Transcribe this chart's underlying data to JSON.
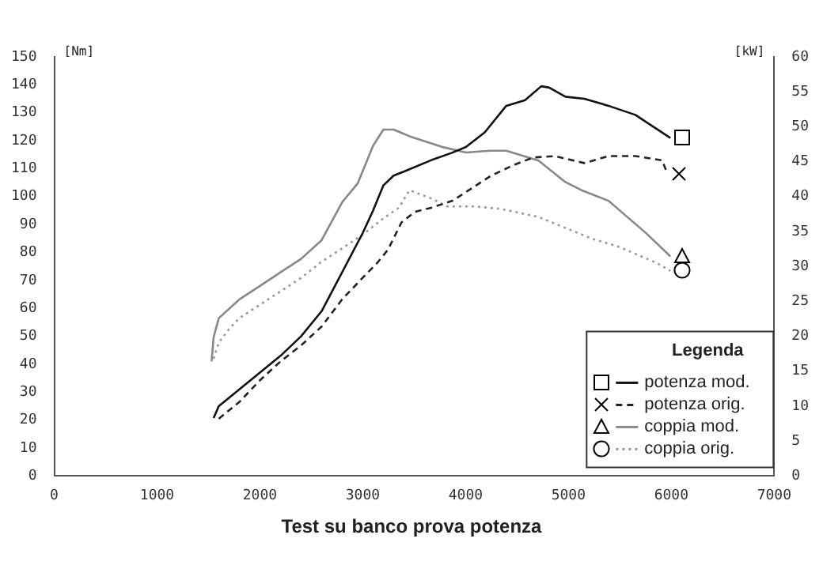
{
  "chart_data": {
    "type": "line",
    "ylabel": "[Nm]",
    "y2label": "[kW]",
    "legend_title": "Legenda",
    "legend": "bottom right",
    "grid": false,
    "xlim": [
      0,
      7000
    ],
    "xticks": [
      0,
      1000,
      2000,
      3000,
      4000,
      5000,
      6000,
      7000
    ],
    "ylim": [
      0,
      150
    ],
    "yticks": [
      0,
      10,
      20,
      30,
      40,
      50,
      60,
      70,
      80,
      90,
      100,
      110,
      120,
      130,
      140,
      150
    ],
    "y2lim": [
      0,
      60
    ],
    "y2ticks": [
      0,
      5,
      10,
      15,
      20,
      25,
      30,
      35,
      40,
      45,
      50,
      55,
      60
    ],
    "annotations": [
      "Test su banco prova potenza"
    ],
    "series": [
      {
        "name": "potenza mod.",
        "color": "#111111",
        "axis": "y2",
        "line_style": "solid",
        "x": [
          1550,
          1600,
          1800,
          2000,
          2200,
          2400,
          2600,
          2800,
          3000,
          3100,
          3200,
          3300,
          3402,
          3663,
          3872,
          4003,
          4186,
          4395,
          4578,
          4735,
          4813,
          4970,
          5154,
          5389,
          5650,
          5991
        ],
        "values": [
          8.3,
          10,
          12.4,
          14.8,
          17.2,
          20,
          23.6,
          29.2,
          34.8,
          38,
          41.6,
          43,
          43.6,
          45.2,
          46.3,
          47.1,
          49.2,
          53,
          53.8,
          55.8,
          55.6,
          54.3,
          54,
          53,
          51.7,
          48.4
        ]
      },
      {
        "name": "potenza orig.",
        "color": "#222222",
        "axis": "y2",
        "line_style": "dashed",
        "x": [
          1600,
          1800,
          2000,
          2200,
          2400,
          2600,
          2800,
          3000,
          3140,
          3245,
          3376,
          3506,
          3663,
          3872,
          4029,
          4238,
          4447,
          4656,
          4866,
          5154,
          5389,
          5650,
          5911,
          5963
        ],
        "values": [
          8.2,
          10.6,
          13.7,
          16.4,
          18.7,
          21.4,
          25.3,
          28.4,
          30.5,
          32.4,
          36.3,
          37.8,
          38.4,
          39.4,
          40.9,
          42.9,
          44.4,
          45.6,
          45.8,
          44.8,
          45.8,
          45.8,
          45.2,
          43.2
        ]
      },
      {
        "name": "coppia mod.",
        "color": "#888888",
        "axis": "y",
        "line_style": "solid",
        "x": [
          1530,
          1550,
          1600,
          1800,
          2000,
          2200,
          2400,
          2600,
          2800,
          2950,
          3100,
          3200,
          3300,
          3454,
          3768,
          4003,
          4238,
          4395,
          4709,
          4970,
          5127,
          5389,
          5755,
          5991
        ],
        "values": [
          41,
          49.7,
          56.5,
          63.2,
          68,
          72.9,
          77.7,
          84.4,
          98,
          104.7,
          118.2,
          124,
          124,
          121.6,
          117.8,
          115.8,
          116.4,
          116.4,
          112.9,
          105.2,
          102.3,
          98.5,
          86.9,
          78.6
        ]
      },
      {
        "name": "coppia orig.",
        "color": "#9a9a9a",
        "axis": "y",
        "line_style": "dotted",
        "x": [
          1550,
          1600,
          1700,
          1800,
          2000,
          2200,
          2400,
          2600,
          2800,
          3000,
          3200,
          3350,
          3454,
          3663,
          3820,
          4082,
          4343,
          4709,
          4970,
          5232,
          5494,
          5860,
          5991
        ],
        "values": [
          42,
          47.8,
          52.6,
          56.5,
          61.3,
          66.1,
          70.9,
          76.7,
          81.5,
          86.4,
          92.2,
          96,
          102.3,
          99.4,
          96.5,
          96.5,
          95.6,
          92.7,
          88.8,
          84.9,
          82,
          76.2,
          73.4
        ]
      }
    ]
  }
}
